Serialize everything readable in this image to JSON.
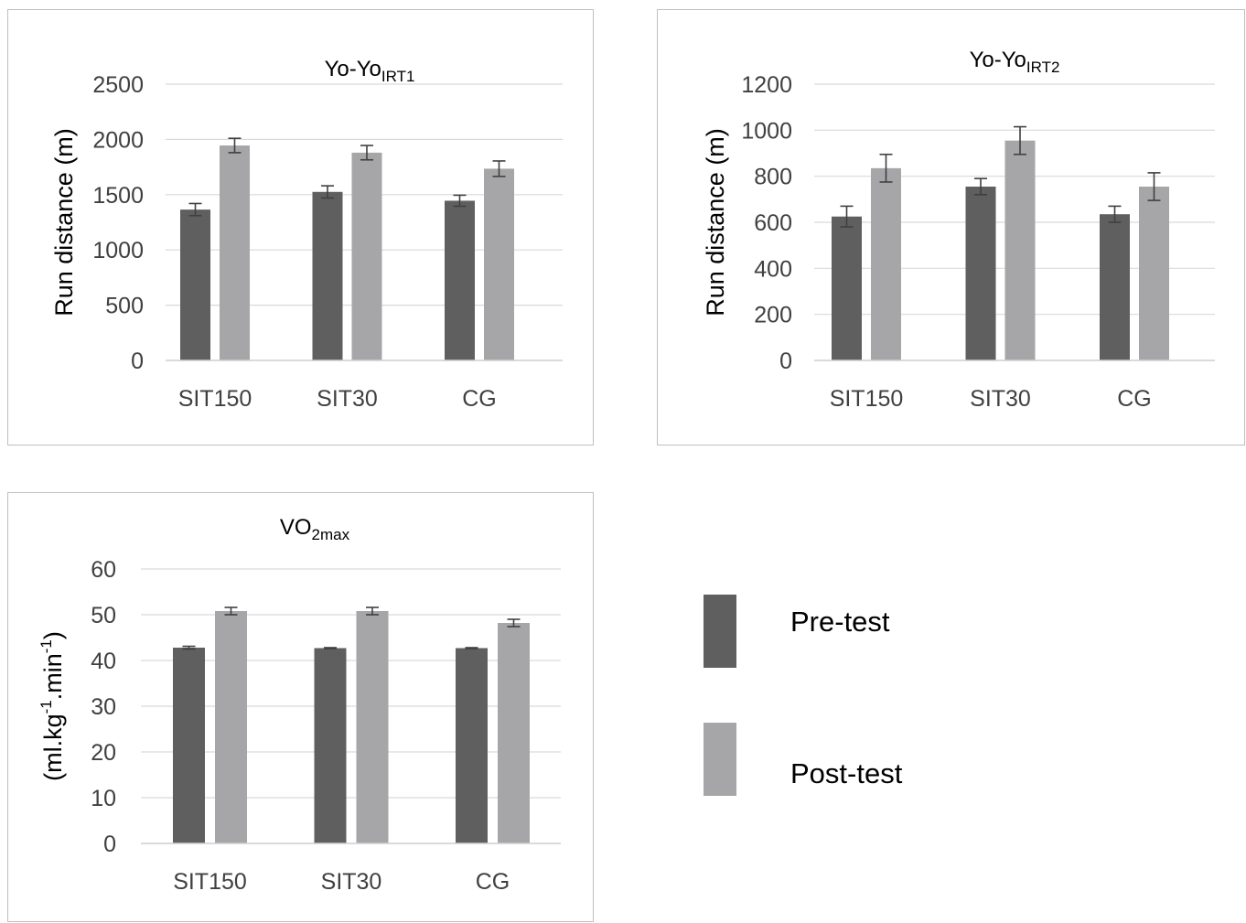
{
  "colors": {
    "pre": "#5f5f60",
    "post": "#a6a6a8",
    "grid": "#d9d9d9",
    "axis_text": "#404040",
    "error_bar": "#404040"
  },
  "legend": {
    "pre_label": "Pre-test",
    "post_label": "Post-test"
  },
  "chart_data": [
    {
      "type": "bar",
      "title": "Yo-Yo",
      "title_sub": "IRT1",
      "ylabel": "Run distance (m)",
      "categories": [
        "SIT150",
        "SIT30",
        "CG"
      ],
      "ylim": [
        0,
        2500
      ],
      "yticks": [
        0,
        500,
        1000,
        1500,
        2000,
        2500
      ],
      "grid": true,
      "series": [
        {
          "name": "Pre-test",
          "values": [
            1365,
            1525,
            1445
          ],
          "errors": [
            55,
            55,
            50
          ]
        },
        {
          "name": "Post-test",
          "values": [
            1945,
            1880,
            1735
          ],
          "errors": [
            65,
            65,
            70
          ]
        }
      ]
    },
    {
      "type": "bar",
      "title": "Yo-Yo",
      "title_sub": "IRT2",
      "ylabel": "Run distance (m)",
      "categories": [
        "SIT150",
        "SIT30",
        "CG"
      ],
      "ylim": [
        0,
        1200
      ],
      "yticks": [
        0,
        200,
        400,
        600,
        800,
        1000,
        1200
      ],
      "grid": true,
      "series": [
        {
          "name": "Pre-test",
          "values": [
            625,
            755,
            635
          ],
          "errors": [
            45,
            35,
            35
          ]
        },
        {
          "name": "Post-test",
          "values": [
            835,
            955,
            755
          ],
          "errors": [
            60,
            60,
            60
          ]
        }
      ]
    },
    {
      "type": "bar",
      "title": "VO",
      "title_sub": "2max",
      "ylabel": "(ml.kg-1.min-1)",
      "ylabel_parts": [
        "(ml.kg",
        "-1",
        ".min",
        "-1",
        ")"
      ],
      "categories": [
        "SIT150",
        "SIT30",
        "CG"
      ],
      "ylim": [
        0,
        60
      ],
      "yticks": [
        0,
        10,
        20,
        30,
        40,
        50,
        60
      ],
      "grid": true,
      "series": [
        {
          "name": "Pre-test",
          "values": [
            42.8,
            42.7,
            42.7
          ],
          "errors": [
            0.3,
            0.1,
            0.1
          ]
        },
        {
          "name": "Post-test",
          "values": [
            50.8,
            50.8,
            48.2
          ],
          "errors": [
            0.8,
            0.8,
            0.8
          ]
        }
      ]
    }
  ]
}
